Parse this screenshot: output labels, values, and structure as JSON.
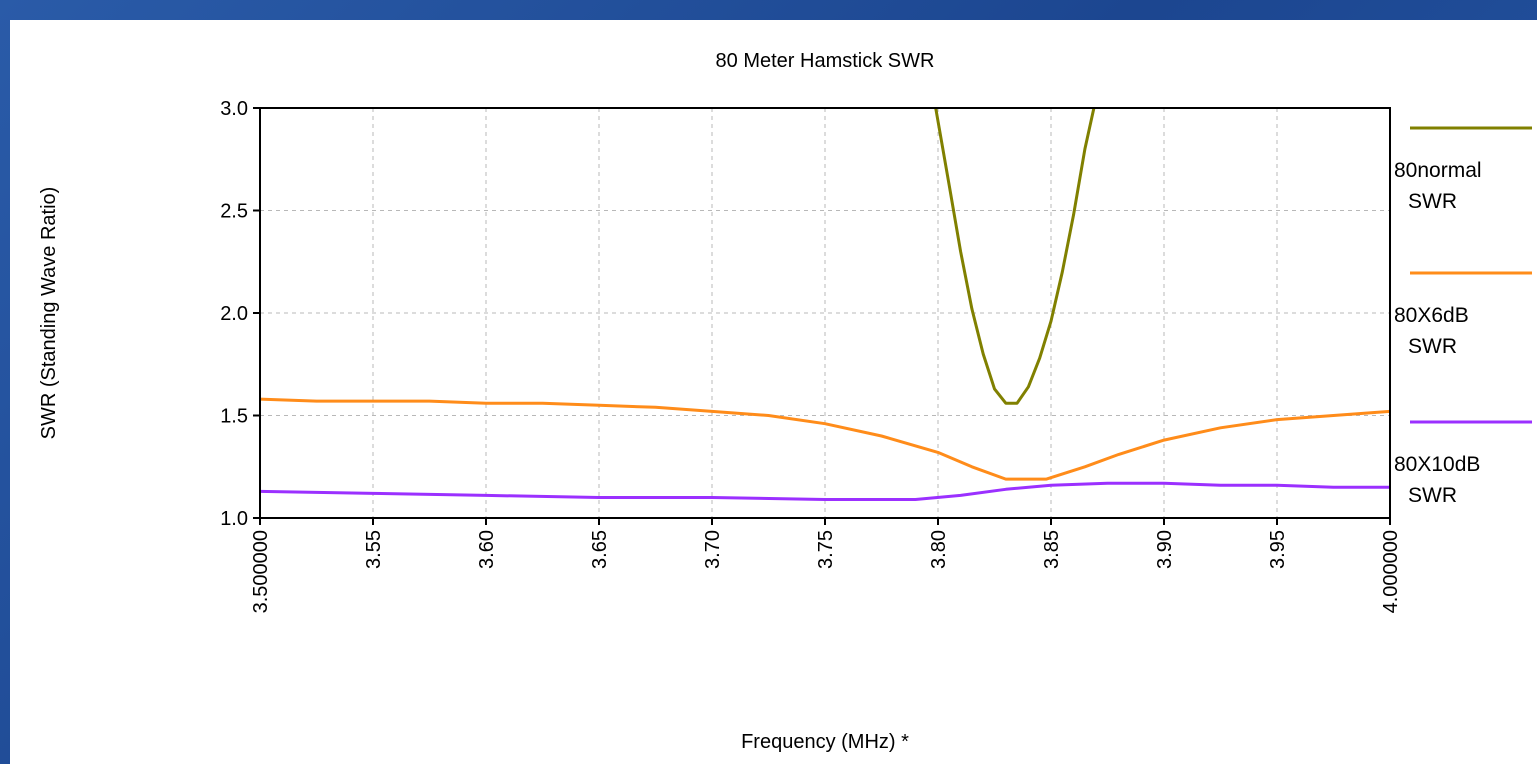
{
  "chart_data": {
    "type": "line",
    "title": "80 Meter Hamstick SWR",
    "xlabel": "Frequency (MHz) *",
    "ylabel": "SWR  (Standing Wave Ratio)",
    "xlim": [
      3.5,
      4.0
    ],
    "ylim": [
      1.0,
      3.0
    ],
    "x_ticks": [
      {
        "value": 3.5,
        "label": "3.500000"
      },
      {
        "value": 3.55,
        "label": "3.55"
      },
      {
        "value": 3.6,
        "label": "3.60"
      },
      {
        "value": 3.65,
        "label": "3.65"
      },
      {
        "value": 3.7,
        "label": "3.70"
      },
      {
        "value": 3.75,
        "label": "3.75"
      },
      {
        "value": 3.8,
        "label": "3.80"
      },
      {
        "value": 3.85,
        "label": "3.85"
      },
      {
        "value": 3.9,
        "label": "3.90"
      },
      {
        "value": 3.95,
        "label": "3.95"
      },
      {
        "value": 4.0,
        "label": "4.000000"
      }
    ],
    "y_ticks": [
      {
        "value": 1.0,
        "label": "1.0"
      },
      {
        "value": 1.5,
        "label": "1.5"
      },
      {
        "value": 2.0,
        "label": "2.0"
      },
      {
        "value": 2.5,
        "label": "2.5"
      },
      {
        "value": 3.0,
        "label": "3.0"
      }
    ],
    "grid": true,
    "legend_position": "right",
    "series": [
      {
        "name": "80normal SWR",
        "legend_lines": [
          "80normal",
          "SWR"
        ],
        "color": "#808000",
        "x": [
          3.799,
          3.805,
          3.81,
          3.815,
          3.82,
          3.825,
          3.83,
          3.835,
          3.84,
          3.845,
          3.85,
          3.855,
          3.86,
          3.865,
          3.869
        ],
        "y": [
          3.0,
          2.62,
          2.3,
          2.02,
          1.8,
          1.63,
          1.56,
          1.56,
          1.64,
          1.78,
          1.96,
          2.2,
          2.48,
          2.8,
          3.0
        ]
      },
      {
        "name": "80X6dB SWR",
        "legend_lines": [
          "80X6dB",
          "SWR"
        ],
        "color": "#ff8c1a",
        "x": [
          3.5,
          3.525,
          3.55,
          3.575,
          3.6,
          3.625,
          3.65,
          3.675,
          3.7,
          3.725,
          3.75,
          3.775,
          3.8,
          3.815,
          3.83,
          3.848,
          3.865,
          3.88,
          3.9,
          3.925,
          3.95,
          3.975,
          4.0
        ],
        "y": [
          1.58,
          1.57,
          1.57,
          1.57,
          1.56,
          1.56,
          1.55,
          1.54,
          1.52,
          1.5,
          1.46,
          1.4,
          1.32,
          1.25,
          1.19,
          1.19,
          1.25,
          1.31,
          1.38,
          1.44,
          1.48,
          1.5,
          1.52
        ]
      },
      {
        "name": "80X10dB SWR",
        "legend_lines": [
          "80X10dB",
          "SWR"
        ],
        "color": "#9b30ff",
        "x": [
          3.5,
          3.55,
          3.6,
          3.65,
          3.7,
          3.75,
          3.79,
          3.81,
          3.83,
          3.85,
          3.875,
          3.9,
          3.925,
          3.95,
          3.975,
          4.0
        ],
        "y": [
          1.13,
          1.12,
          1.11,
          1.1,
          1.1,
          1.09,
          1.09,
          1.11,
          1.14,
          1.16,
          1.17,
          1.17,
          1.16,
          1.16,
          1.15,
          1.15
        ]
      }
    ]
  }
}
